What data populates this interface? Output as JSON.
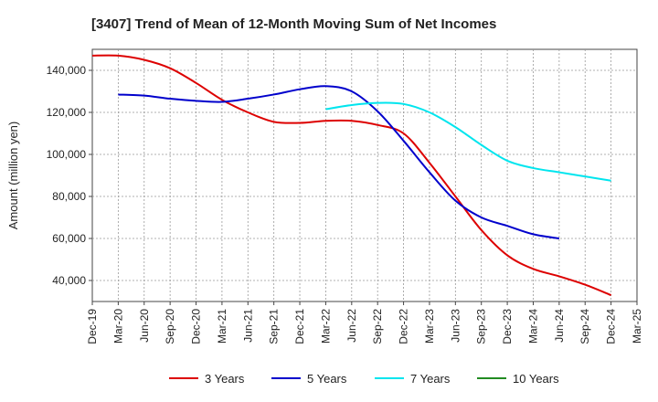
{
  "chart_data": {
    "type": "line",
    "title": "[3407]  Trend of Mean of 12-Month Moving Sum of Net Incomes",
    "xlabel": "",
    "ylabel": "Amount (million yen)",
    "ylim": [
      30000,
      150000
    ],
    "yticks": [
      40000,
      60000,
      80000,
      100000,
      120000,
      140000
    ],
    "ytick_labels": [
      "40,000",
      "60,000",
      "80,000",
      "100,000",
      "120,000",
      "140,000"
    ],
    "xtick_labels": [
      "Dec-19",
      "Mar-20",
      "Jun-20",
      "Sep-20",
      "Dec-20",
      "Mar-21",
      "Jun-21",
      "Sep-21",
      "Dec-21",
      "Mar-22",
      "Jun-22",
      "Sep-22",
      "Dec-22",
      "Mar-23",
      "Jun-23",
      "Sep-23",
      "Dec-23",
      "Mar-24",
      "Jun-24",
      "Sep-24",
      "Dec-24",
      "Mar-25"
    ],
    "grid": true,
    "legend_position": "bottom",
    "series": [
      {
        "name": "3 Years",
        "color": "#dd0000",
        "start_index": 0,
        "values": [
          147000,
          147000,
          145000,
          141000,
          134000,
          126000,
          120000,
          115500,
          115000,
          116000,
          116000,
          114000,
          110000,
          96000,
          80000,
          64000,
          52000,
          45500,
          42000,
          38000,
          33000
        ]
      },
      {
        "name": "5 Years",
        "color": "#0000cc",
        "start_index": 1,
        "values": [
          128500,
          128000,
          126500,
          125500,
          125000,
          126500,
          128500,
          131000,
          132500,
          130000,
          120500,
          106500,
          91500,
          78000,
          70000,
          66000,
          62000,
          60000
        ]
      },
      {
        "name": "7 Years",
        "color": "#00e5ee",
        "start_index": 9,
        "values": [
          121500,
          123500,
          124500,
          124000,
          120000,
          113000,
          104500,
          97000,
          93500,
          91500,
          89500,
          87500
        ]
      },
      {
        "name": "10 Years",
        "color": "#228b22",
        "start_index": 0,
        "values": []
      }
    ]
  }
}
